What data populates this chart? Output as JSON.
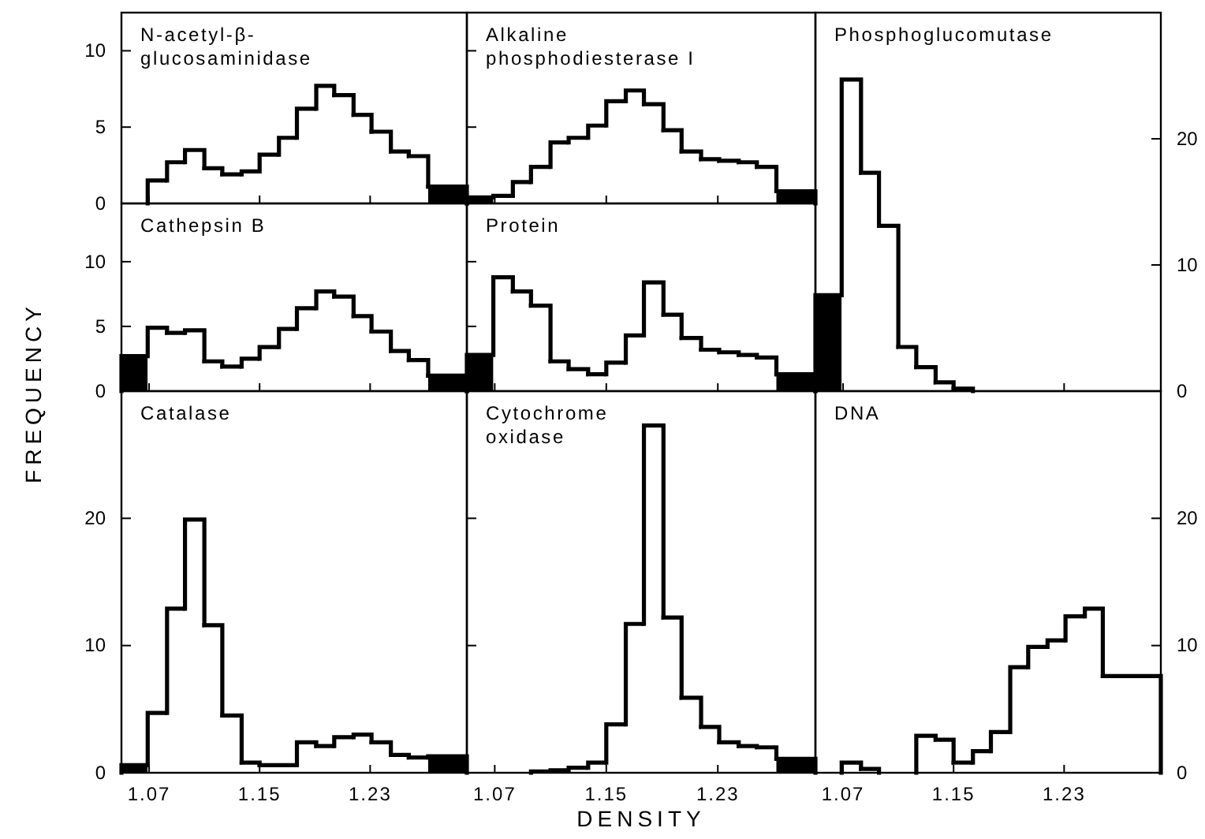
{
  "chart_data": [
    {
      "type": "histogram",
      "title": "N-acetyl-β-\nglucosaminidase",
      "bins": [
        1.069,
        1.083,
        1.096,
        1.11,
        1.123,
        1.137,
        1.15,
        1.164,
        1.177,
        1.191,
        1.204,
        1.218,
        1.231,
        1.245,
        1.258,
        1.272,
        1.3
      ],
      "values": [
        1.5,
        2.7,
        3.5,
        2.3,
        1.9,
        2.1,
        3.2,
        4.3,
        6.2,
        7.7,
        7.1,
        5.8,
        4.7,
        3.4,
        3.1,
        1.1
      ],
      "colors": [
        "#ffffff",
        "#ffffff",
        "#ffffff",
        "#ffffff",
        "#ffffff",
        "#ffffff",
        "#ffffff",
        "#ffffff",
        "#ffffff",
        "#ffffff",
        "#ffffff",
        "#ffffff",
        "#ffffff",
        "#ffffff",
        "#ffffff",
        "#000000"
      ],
      "xlim": [
        1.05,
        1.3
      ],
      "xticks": [
        1.07,
        1.15,
        1.23
      ],
      "ylim": [
        0,
        12.5
      ],
      "yticks": [
        0,
        5,
        10
      ],
      "tick_labels": "y"
    },
    {
      "type": "histogram",
      "title": "Alkaline\nphosphodiesterase I",
      "bins": [
        1.05,
        1.069,
        1.083,
        1.096,
        1.11,
        1.123,
        1.137,
        1.15,
        1.164,
        1.177,
        1.191,
        1.204,
        1.218,
        1.231,
        1.245,
        1.258,
        1.272,
        1.3
      ],
      "values": [
        0.4,
        0.5,
        1.4,
        2.4,
        4.0,
        4.3,
        5.1,
        6.7,
        7.4,
        6.5,
        4.8,
        3.4,
        2.9,
        2.8,
        2.7,
        2.4,
        0.8
      ],
      "colors": [
        "#000000",
        "#ffffff",
        "#ffffff",
        "#ffffff",
        "#ffffff",
        "#ffffff",
        "#ffffff",
        "#ffffff",
        "#ffffff",
        "#ffffff",
        "#ffffff",
        "#ffffff",
        "#ffffff",
        "#ffffff",
        "#ffffff",
        "#ffffff",
        "#000000"
      ],
      "xlim": [
        1.05,
        1.3
      ],
      "xticks": [
        1.07,
        1.15,
        1.23
      ],
      "ylim": [
        0,
        12.5
      ],
      "yticks": [
        0,
        5,
        10
      ],
      "tick_labels": false
    },
    {
      "type": "histogram",
      "title": "Phosphoglucomutase",
      "bins": [
        1.05,
        1.069,
        1.083,
        1.096,
        1.11,
        1.123,
        1.137,
        1.15,
        1.164
      ],
      "values": [
        7.6,
        24.7,
        17.3,
        13.1,
        3.5,
        1.9,
        0.7,
        0.2
      ],
      "colors": [
        "#000000",
        "#ffffff",
        "#ffffff",
        "#ffffff",
        "#ffffff",
        "#ffffff",
        "#ffffff",
        "#ffffff"
      ],
      "xlim": [
        1.05,
        1.3
      ],
      "xticks": [
        1.07,
        1.15,
        1.23
      ],
      "ylim": [
        0,
        30
      ],
      "yticks": [
        0,
        10,
        20
      ],
      "tick_labels": "y"
    },
    {
      "type": "histogram",
      "title": "Cathepsin B",
      "ylabel": "FREQUENCY",
      "bins": [
        1.05,
        1.069,
        1.083,
        1.096,
        1.11,
        1.123,
        1.137,
        1.15,
        1.164,
        1.177,
        1.191,
        1.204,
        1.218,
        1.231,
        1.245,
        1.258,
        1.272,
        1.3
      ],
      "values": [
        2.7,
        4.9,
        4.5,
        4.7,
        2.3,
        1.9,
        2.5,
        3.4,
        4.8,
        6.4,
        7.7,
        7.3,
        5.8,
        4.6,
        3.1,
        2.4,
        1.2
      ],
      "colors": [
        "#000000",
        "#ffffff",
        "#ffffff",
        "#ffffff",
        "#ffffff",
        "#ffffff",
        "#ffffff",
        "#ffffff",
        "#ffffff",
        "#ffffff",
        "#ffffff",
        "#ffffff",
        "#ffffff",
        "#ffffff",
        "#ffffff",
        "#ffffff",
        "#000000"
      ],
      "xlim": [
        1.05,
        1.3
      ],
      "xticks": [
        1.07,
        1.15,
        1.23
      ],
      "ylim": [
        0,
        14.5
      ],
      "yticks": [
        0,
        5,
        10
      ],
      "tick_labels": "y"
    },
    {
      "type": "histogram",
      "title": "Protein",
      "bins": [
        1.05,
        1.069,
        1.083,
        1.096,
        1.11,
        1.123,
        1.137,
        1.15,
        1.164,
        1.177,
        1.191,
        1.204,
        1.218,
        1.231,
        1.245,
        1.258,
        1.272,
        1.3
      ],
      "values": [
        2.8,
        8.8,
        7.7,
        6.6,
        2.3,
        1.7,
        1.3,
        2.2,
        4.3,
        8.4,
        5.9,
        4.1,
        3.2,
        3.0,
        2.8,
        2.6,
        1.3
      ],
      "colors": [
        "#000000",
        "#ffffff",
        "#ffffff",
        "#ffffff",
        "#ffffff",
        "#ffffff",
        "#ffffff",
        "#ffffff",
        "#ffffff",
        "#ffffff",
        "#ffffff",
        "#ffffff",
        "#ffffff",
        "#ffffff",
        "#ffffff",
        "#ffffff",
        "#000000"
      ],
      "xlim": [
        1.05,
        1.3
      ],
      "xticks": [
        1.07,
        1.15,
        1.23
      ],
      "ylim": [
        0,
        14.5
      ],
      "yticks": [
        0,
        5,
        10
      ],
      "tick_labels": false
    },
    {
      "type": "histogram",
      "title": "Catalase",
      "bins": [
        1.05,
        1.069,
        1.083,
        1.096,
        1.11,
        1.123,
        1.137,
        1.15,
        1.177,
        1.191,
        1.204,
        1.218,
        1.231,
        1.245,
        1.258,
        1.272,
        1.3
      ],
      "values": [
        0.6,
        4.7,
        12.9,
        19.9,
        11.6,
        4.5,
        0.8,
        0.6,
        2.4,
        2.1,
        2.8,
        3.0,
        2.4,
        1.4,
        1.2,
        1.3
      ],
      "colors": [
        "#000000",
        "#ffffff",
        "#ffffff",
        "#ffffff",
        "#ffffff",
        "#ffffff",
        "#ffffff",
        "#ffffff",
        "#ffffff",
        "#ffffff",
        "#ffffff",
        "#ffffff",
        "#ffffff",
        "#ffffff",
        "#ffffff",
        "#000000"
      ],
      "xlim": [
        1.05,
        1.3
      ],
      "xticks": [
        1.07,
        1.15,
        1.23
      ],
      "ylim": [
        0,
        30
      ],
      "yticks": [
        0,
        10,
        20
      ]
    },
    {
      "type": "histogram",
      "title": "Cytochrome\noxidase",
      "xlabel": "DENSITY",
      "bins": [
        1.096,
        1.11,
        1.123,
        1.137,
        1.15,
        1.164,
        1.177,
        1.191,
        1.204,
        1.218,
        1.231,
        1.245,
        1.258,
        1.272,
        1.3
      ],
      "values": [
        0.1,
        0.2,
        0.4,
        0.8,
        3.8,
        11.7,
        27.3,
        12.2,
        5.9,
        3.6,
        2.4,
        2.1,
        2.0,
        1.1
      ],
      "colors": [
        "#ffffff",
        "#ffffff",
        "#ffffff",
        "#ffffff",
        "#ffffff",
        "#ffffff",
        "#ffffff",
        "#ffffff",
        "#ffffff",
        "#ffffff",
        "#ffffff",
        "#ffffff",
        "#ffffff",
        "#000000"
      ],
      "xlim": [
        1.05,
        1.3
      ],
      "xticks": [
        1.07,
        1.15,
        1.23
      ],
      "ylim": [
        0,
        30
      ],
      "yticks": [
        0,
        10,
        20
      ],
      "tick_labels": "x"
    },
    {
      "type": "histogram",
      "title": "DNA",
      "bins": [
        1.069,
        1.083,
        1.096,
        1.123,
        1.137,
        1.15,
        1.164,
        1.177,
        1.191,
        1.204,
        1.218,
        1.231,
        1.245,
        1.258,
        1.3
      ],
      "values": [
        0.8,
        0.3,
        0,
        2.9,
        2.6,
        0.8,
        1.7,
        3.2,
        8.3,
        9.9,
        10.4,
        12.3,
        12.9,
        7.6
      ],
      "colors": [
        "#ffffff",
        "#ffffff",
        "#ffffff",
        "#ffffff",
        "#ffffff",
        "#ffffff",
        "#ffffff",
        "#ffffff",
        "#ffffff",
        "#ffffff",
        "#ffffff",
        "#ffffff",
        "#ffffff",
        "#ffffff"
      ],
      "xlim": [
        1.05,
        1.3
      ],
      "xticks": [
        1.07,
        1.15,
        1.23
      ],
      "ylim": [
        0,
        30
      ],
      "yticks": [
        0,
        10,
        20
      ]
    }
  ]
}
